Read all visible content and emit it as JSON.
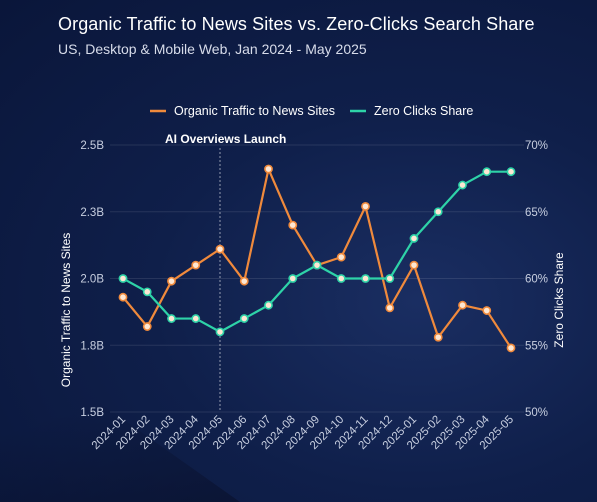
{
  "page": {
    "title": "Organic Traffic to News Sites vs. Zero-Clicks Search Share",
    "subtitle": "US, Desktop & Mobile Web, Jan 2024 - May 2025"
  },
  "chart_data": {
    "type": "line",
    "categories": [
      "2024-01",
      "2024-02",
      "2024-03",
      "2024-04",
      "2024-05",
      "2024-06",
      "2024-07",
      "2024-08",
      "2024-09",
      "2024-10",
      "2024-11",
      "2024-12",
      "2025-01",
      "2025-02",
      "2025-03",
      "2025-04",
      "2025-05"
    ],
    "series": [
      {
        "name": "Organic Traffic to News Sites",
        "axis": "left",
        "color": "#f08a3c",
        "values": [
          1.93,
          1.82,
          1.99,
          2.05,
          2.11,
          1.99,
          2.41,
          2.2,
          2.05,
          2.08,
          2.27,
          1.89,
          2.05,
          1.78,
          1.9,
          1.88,
          1.74
        ]
      },
      {
        "name": "Zero Clicks Share",
        "axis": "right",
        "color": "#2ed3a8",
        "values": [
          60,
          59,
          57,
          57,
          56,
          57,
          58,
          60,
          61,
          60,
          60,
          60,
          63,
          65,
          67,
          68,
          68
        ]
      }
    ],
    "y_left": {
      "label": "Organic Traffic to News Sites",
      "range": [
        1.5,
        2.5
      ],
      "ticks": [
        1.5,
        1.75,
        2.0,
        2.25,
        2.5
      ],
      "tick_labels": [
        "1.5B",
        "1.8B",
        "2.0B",
        "2.3B",
        "2.5B"
      ]
    },
    "y_right": {
      "label": "Zero Clicks Share",
      "range": [
        50,
        70
      ],
      "ticks": [
        50,
        55,
        60,
        65,
        70
      ],
      "tick_labels": [
        "50%",
        "55%",
        "60%",
        "65%",
        "70%"
      ]
    },
    "annotation": {
      "label": "AI Overviews Launch",
      "at_category": "2024-05"
    },
    "legend_position": "top-center",
    "grid": "horizontal"
  }
}
